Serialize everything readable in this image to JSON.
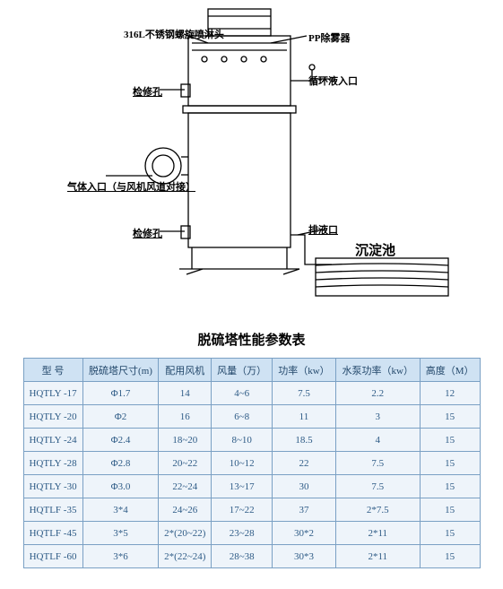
{
  "diagram": {
    "labels": {
      "nozzle": "316L不锈钢螺旋喷淋头",
      "pp_demister": "PP除雾器",
      "inspection_hole_top": "检修孔",
      "circ_inlet": "循环液入口",
      "gas_inlet": "气体入口（与风机风道对接）",
      "drain": "排液口",
      "settling_pond": "沉淀池",
      "inspection_hole_bottom": "检修孔"
    },
    "line_color": "#000000",
    "background": "#ffffff"
  },
  "table": {
    "title": "脱硫塔性能参数表",
    "header_bg": "#cfe2f3",
    "cell_bg": "#eef4fa",
    "border_color": "#7aa0c4",
    "text_color": "#2e5b86",
    "columns": [
      "型 号",
      "脱硫塔尺寸(m)",
      "配用风机",
      "风量（万）",
      "功率（kw）",
      "水泵功率（kw）",
      "高度（M）"
    ],
    "rows": [
      [
        "HQTLY -17",
        "Φ1.7",
        "14",
        "4~6",
        "7.5",
        "2.2",
        "12"
      ],
      [
        "HQTLY -20",
        "Φ2",
        "16",
        "6~8",
        "11",
        "3",
        "15"
      ],
      [
        "HQTLY -24",
        "Φ2.4",
        "18~20",
        "8~10",
        "18.5",
        "4",
        "15"
      ],
      [
        "HQTLY -28",
        "Φ2.8",
        "20~22",
        "10~12",
        "22",
        "7.5",
        "15"
      ],
      [
        "HQTLY -30",
        "Φ3.0",
        "22~24",
        "13~17",
        "30",
        "7.5",
        "15"
      ],
      [
        "HQTLF -35",
        "3*4",
        "24~26",
        "17~22",
        "37",
        "2*7.5",
        "15"
      ],
      [
        "HQTLF -45",
        "3*5",
        "2*(20~22)",
        "23~28",
        "30*2",
        "2*11",
        "15"
      ],
      [
        "HQTLF -60",
        "3*6",
        "2*(22~24)",
        "28~38",
        "30*3",
        "2*11",
        "15"
      ]
    ]
  }
}
